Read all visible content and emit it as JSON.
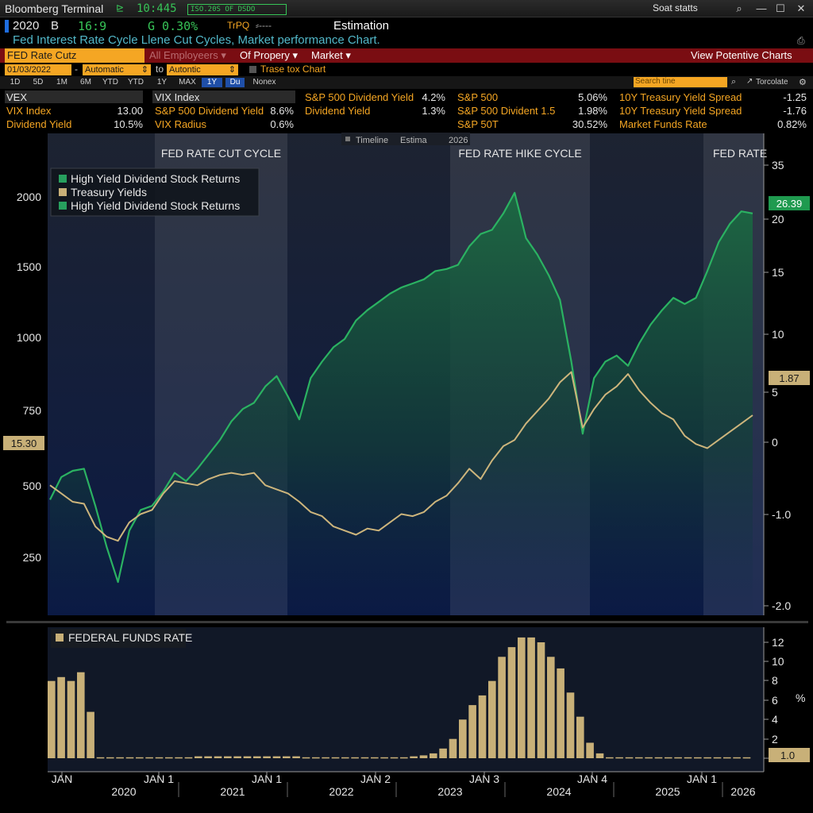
{
  "titlebar": {
    "app": "Bloomberg Terminal",
    "time": "10:445",
    "ticker": "ISO.20S OF DSDO",
    "status": "Soat statts",
    "search_icon": "search-icon"
  },
  "header": {
    "security": "2020",
    "label_b": "B",
    "price": "16:9",
    "change": "G 0.30%",
    "code": "TrPQ",
    "mode": "Estimation",
    "subtitle": "Fed Interest Rate Cycle Llene Cut Cycles, Market performance Chart."
  },
  "menubar": {
    "items": [
      "FED Rate Cutz",
      "All Employeers",
      "Of Propery",
      "Market"
    ],
    "right_action": "View Potentive Charts"
  },
  "datebar": {
    "start_date": "01/03/2022",
    "start_mode": "Automatic",
    "to_label": "to",
    "end_mode": "Autontic",
    "chart_label": "Trase tox Chart",
    "search_placeholder": "Search tine",
    "tool": "Torcolate"
  },
  "rangebar": {
    "buttons": [
      "1D",
      "5D",
      "1M",
      "6M",
      "YTD",
      "YTD",
      "1Y",
      "MAX",
      "1Y",
      "Du",
      "Nonex"
    ],
    "selected_index": 8
  },
  "stats": {
    "col1": [
      {
        "label": "VEX",
        "value": ""
      },
      {
        "label": "VIX Index",
        "value": "13.00"
      },
      {
        "label": "Dividend Yield",
        "value": "10.5%"
      }
    ],
    "col2": [
      {
        "label": "VIX Index",
        "value": ""
      },
      {
        "label": "S&P 500 Dividend Yield",
        "value": "8.6%"
      },
      {
        "label": "VIX Radius",
        "value": "0.6%"
      }
    ],
    "col3": [
      {
        "label": "S&P 500 Dividend Yield",
        "value": "4.2%"
      },
      {
        "label": "Dividend Yield",
        "value": "1.3%"
      },
      {
        "label": "",
        "value": ""
      }
    ],
    "col4": [
      {
        "label": "S&P 500",
        "value": "5.06%"
      },
      {
        "label": "S&P 500 Divident 1.5",
        "value": "1.98%"
      },
      {
        "label": "S&P 50T",
        "value": "30.52%"
      }
    ],
    "col5": [
      {
        "label": "10Y Treasury Yield Spread",
        "value": "-1.25"
      },
      {
        "label": "10Y Treasury Yield Spread",
        "value": "-1.76"
      },
      {
        "label": "Market Funds Rate",
        "value": "0.82%"
      }
    ]
  },
  "chart_tabs": [
    "Timeline",
    "Estima",
    "2026"
  ],
  "cycles": [
    "FED RATE CUT CYCLE",
    "FED RATE HIKE CYCLE",
    "FED RATE"
  ],
  "badges": {
    "left": "15.30",
    "right_top": "26.39",
    "right_mid": "1.87",
    "lower": "1.0"
  },
  "colors": {
    "green": "#2e9e5e",
    "tan": "#c8b078",
    "orange": "#f5a623",
    "red_menu": "#7a0d12",
    "navy": "#0c1a3a"
  },
  "chart_data": [
    {
      "type": "line",
      "legend": [
        "High Yield Dividend Stock Returns",
        "Treasury Yields",
        "High Yield Dividend Stock Returns"
      ],
      "y_left_ticks": [
        "2000",
        "1500",
        "1000",
        "750",
        "500",
        "250"
      ],
      "y_right_ticks": [
        "35",
        "20",
        "15",
        "10",
        "5",
        "0",
        "-1.0",
        "-2.0"
      ],
      "series": [
        {
          "name": "High Yield Dividend Stock Returns",
          "values": [
            530,
            640,
            670,
            680,
            500,
            300,
            130,
            380,
            480,
            500,
            570,
            660,
            620,
            680,
            750,
            820,
            910,
            970,
            1000,
            1080,
            1130,
            1030,
            920,
            1120,
            1200,
            1270,
            1310,
            1400,
            1450,
            1490,
            1530,
            1560,
            1580,
            1600,
            1640,
            1650,
            1670,
            1760,
            1820,
            1840,
            1920,
            2020,
            1800,
            1720,
            1620,
            1500,
            1200,
            850,
            1120,
            1200,
            1230,
            1180,
            1290,
            1380,
            1450,
            1510,
            1480,
            1510,
            1640,
            1780,
            1870,
            1930,
            1920
          ]
        },
        {
          "name": "Treasury Yields",
          "values": [
            600,
            560,
            520,
            510,
            400,
            350,
            330,
            420,
            460,
            480,
            560,
            620,
            610,
            600,
            630,
            650,
            660,
            650,
            660,
            600,
            580,
            560,
            520,
            470,
            450,
            400,
            380,
            360,
            390,
            380,
            420,
            460,
            450,
            470,
            520,
            550,
            610,
            680,
            630,
            720,
            790,
            820,
            900,
            960,
            1020,
            1100,
            1150,
            880,
            970,
            1040,
            1080,
            1140,
            1060,
            1000,
            950,
            920,
            840,
            800,
            780,
            820,
            860,
            900,
            940
          ]
        }
      ]
    },
    {
      "type": "bar",
      "legend": [
        "FEDERAL FUNDS RATE"
      ],
      "y_ticks": [
        "12",
        "10",
        "8",
        "6",
        "4",
        "2",
        "0"
      ],
      "y_unit": "%",
      "values": [
        8,
        8.4,
        8,
        8.9,
        4.8,
        0.1,
        0.1,
        0.1,
        0.1,
        0.1,
        0.1,
        0.1,
        0.1,
        0.1,
        0.1,
        0.2,
        0.2,
        0.2,
        0.2,
        0.2,
        0.2,
        0.2,
        0.2,
        0.2,
        0.2,
        0.2,
        0.1,
        0.1,
        0.1,
        0.1,
        0.1,
        0.1,
        0.1,
        0.1,
        0.1,
        0.1,
        0.1,
        0.2,
        0.3,
        0.5,
        1,
        2,
        4,
        5.5,
        6.5,
        8,
        10.5,
        11.5,
        12.5,
        12.5,
        12,
        10.5,
        9.3,
        6.8,
        4.3,
        1.6,
        0.5,
        0.1,
        0.1,
        0.1,
        0.1,
        0.1,
        0.1,
        0.1,
        0.1,
        0.1,
        0.1,
        0.1,
        0.1,
        0.1,
        0.1,
        0.1
      ]
    }
  ],
  "x_axis": {
    "jan_labels": [
      "JAN",
      "JAN 1",
      "JAN 1",
      "JAN 2",
      "JAN 3",
      "JAN 4",
      "JAN 1"
    ],
    "years": [
      "2020",
      "2021",
      "2022",
      "2023",
      "2024",
      "2025",
      "2026"
    ]
  }
}
